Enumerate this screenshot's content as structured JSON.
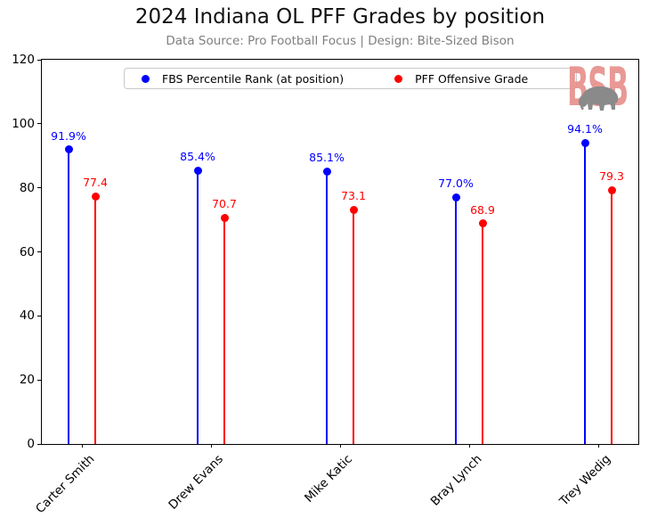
{
  "title": "2024 Indiana OL PFF Grades by position",
  "subtitle": "Data Source: Pro Football Focus | Design: Bite-Sized Bison",
  "logo": {
    "text": "BSB",
    "icon": "bison"
  },
  "colors": {
    "series_blue": "#0000ff",
    "series_red": "#ff0000",
    "title": "#111111",
    "subtitle": "#7f7f7f",
    "axis": "#000000",
    "legend_border": "#c9c9c9",
    "logo_letters": "#e8918d",
    "bison": "#8a8a8a"
  },
  "chart_data": {
    "type": "stem",
    "title": "2024 Indiana OL PFF Grades by position",
    "subtitle": "Data Source: Pro Football Focus | Design: Bite-Sized Bison",
    "categories": [
      "Carter Smith",
      "Drew Evans",
      "Mike Katic",
      "Bray Lynch",
      "Trey Wedig"
    ],
    "series": [
      {
        "name": "FBS Percentile Rank (at position)",
        "color": "#0000ff",
        "values": [
          91.9,
          85.4,
          85.1,
          77.0,
          94.1
        ],
        "labels": [
          "91.9%",
          "85.4%",
          "85.1%",
          "77.0%",
          "94.1%"
        ]
      },
      {
        "name": "PFF Offensive Grade",
        "color": "#ff0000",
        "values": [
          77.4,
          70.7,
          73.1,
          68.9,
          79.3
        ],
        "labels": [
          "77.4",
          "70.7",
          "73.1",
          "68.9",
          "79.3"
        ]
      }
    ],
    "ylim": [
      0,
      120
    ],
    "yticks": [
      0,
      20,
      40,
      60,
      80,
      100,
      120
    ],
    "xlabel": "",
    "ylabel": "",
    "grid": false,
    "legend_position": "upper center"
  }
}
